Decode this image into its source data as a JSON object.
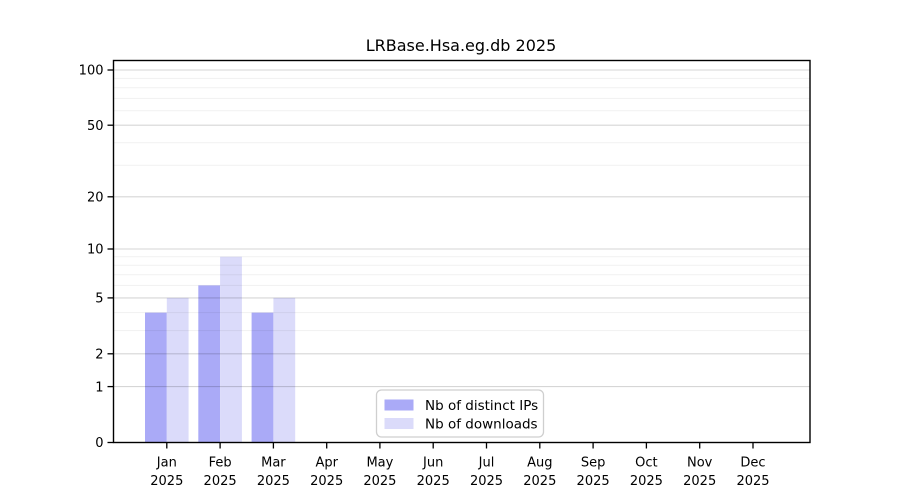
{
  "chart_data": {
    "type": "bar",
    "title": "LRBase.Hsa.eg.db 2025",
    "categories": [
      "Jan",
      "Feb",
      "Mar",
      "Apr",
      "May",
      "Jun",
      "Jul",
      "Aug",
      "Sep",
      "Oct",
      "Nov",
      "Dec"
    ],
    "category_year": "2025",
    "series": [
      {
        "name": "Nb of distinct IPs",
        "color": "#aaaaf7",
        "values": [
          4,
          6,
          4,
          0,
          0,
          0,
          0,
          0,
          0,
          0,
          0,
          0
        ]
      },
      {
        "name": "Nb of downloads",
        "color": "#dbdbfa",
        "values": [
          5,
          9,
          5,
          0,
          0,
          0,
          0,
          0,
          0,
          0,
          0,
          0
        ]
      }
    ],
    "xlabel": "",
    "ylabel": "",
    "ylim": [
      0,
      100
    ],
    "y_scale": "log10(1+y)",
    "y_major_ticks": [
      0,
      1,
      2,
      5,
      10,
      20,
      50,
      100
    ],
    "y_major_gridlines": [
      1,
      2,
      5,
      10,
      20,
      50,
      100
    ],
    "y_minor_gridlines": [
      3,
      4,
      6,
      7,
      8,
      9,
      30,
      40,
      60,
      70,
      80,
      90
    ],
    "grid": true,
    "gridlines_over_bars": true,
    "legend_position": "bottom-center",
    "colors": {
      "axis": "#000000",
      "major_grid": "rgba(0,0,0,0.16)",
      "minor_grid": "rgba(0,0,0,0.06)",
      "legend_border": "#cfcfcf",
      "background": "#ffffff"
    }
  }
}
